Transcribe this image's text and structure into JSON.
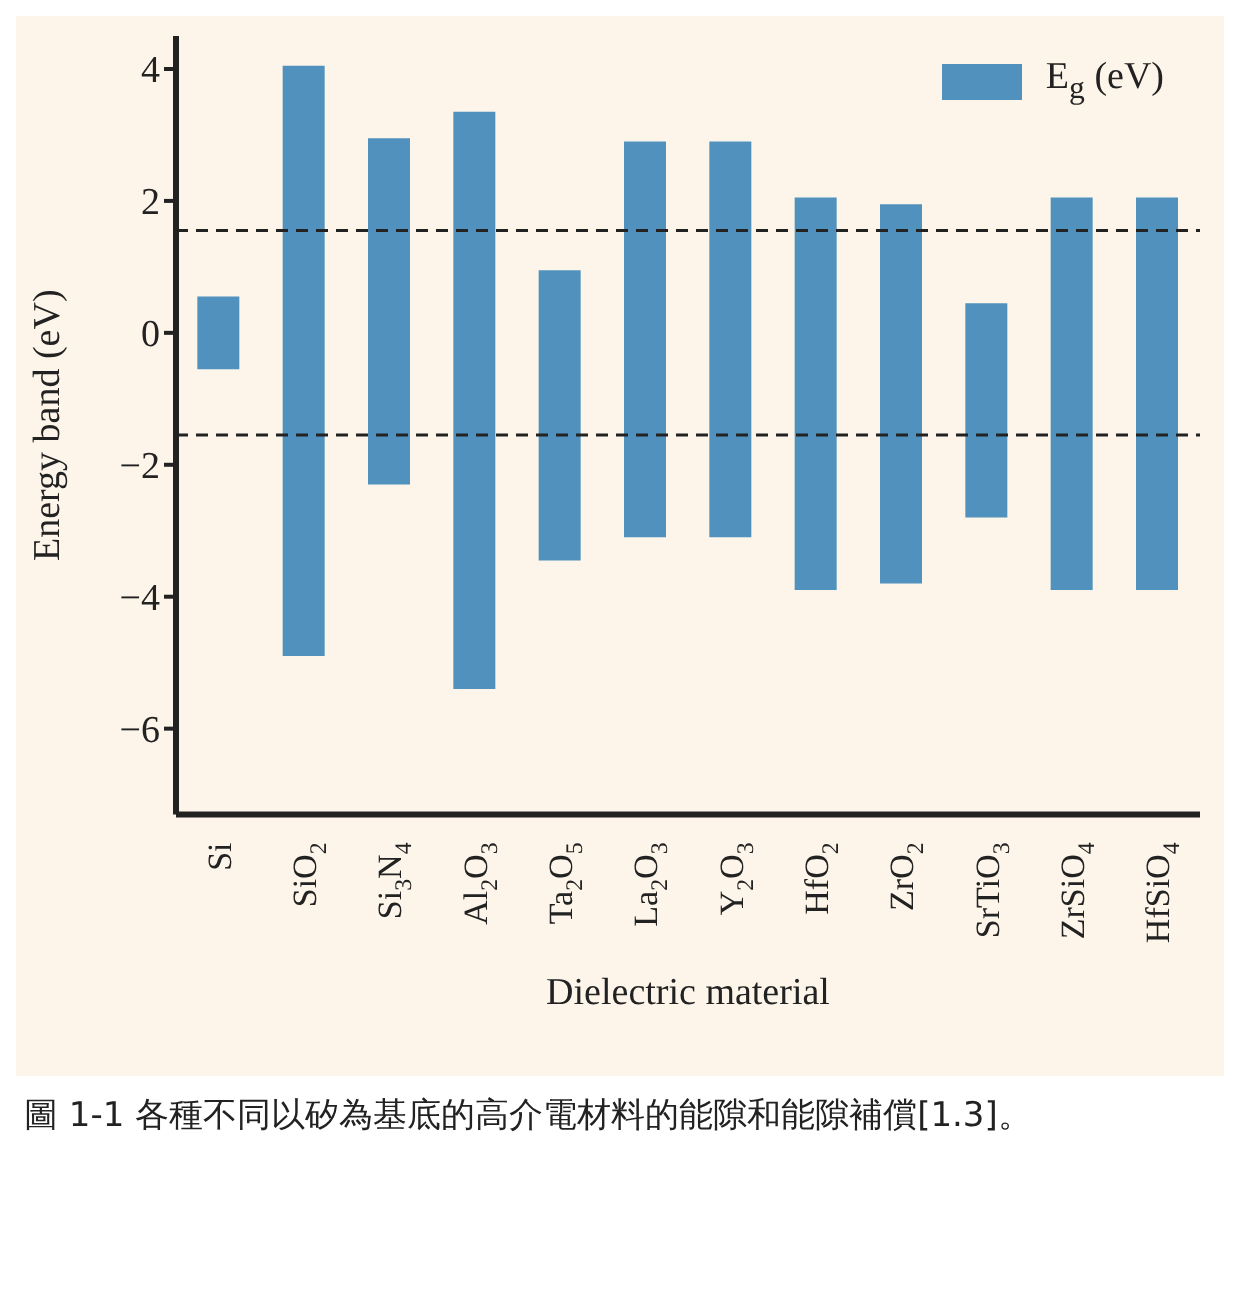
{
  "chart_data": {
    "type": "bar",
    "categories": [
      "Si",
      "SiO$_{2}$",
      "Si$_{3}$N$_{4}$",
      "Al$_{2}$O$_{3}$",
      "Ta$_{2}$O$_{5}$",
      "La$_{2}$O$_{3}$",
      "Y$_{2}$O$_{3}$",
      "HfO$_{2}$",
      "ZrO$_{2}$",
      "SrTiO$_{3}$",
      "ZrSiO$_{4}$",
      "HfSiO$_{4}$"
    ],
    "series": [
      {
        "name": "E$_{g}$ (eV)",
        "color": "#5191be",
        "base": [
          -0.55,
          -4.9,
          -2.3,
          -5.4,
          -3.45,
          -3.1,
          -3.1,
          -3.9,
          -3.8,
          -2.8,
          -3.9,
          -3.9
        ],
        "values": [
          1.1,
          8.95,
          5.25,
          8.75,
          4.4,
          6.0,
          6.0,
          5.95,
          5.75,
          3.25,
          5.95,
          5.95
        ]
      }
    ],
    "xlabel": "Dielectric material",
    "ylabel": "Energy band (eV)",
    "ylim": [
      -7.3,
      4.5
    ],
    "yticks": [
      -6,
      -4,
      -2,
      0,
      2,
      4
    ],
    "ref_lines": [
      {
        "axis": "y",
        "value": 1.55,
        "label": null,
        "color": "#222222",
        "line_style": "dashed"
      },
      {
        "axis": "y",
        "value": -1.55,
        "label": null,
        "color": "#222222",
        "line_style": "dashed"
      }
    ],
    "legend": "top right",
    "grid": false,
    "annotations": [
      "圖 1-1 各種不同以矽為基底的高介電材料的能隙和能隙補償[1.3]。"
    ]
  }
}
